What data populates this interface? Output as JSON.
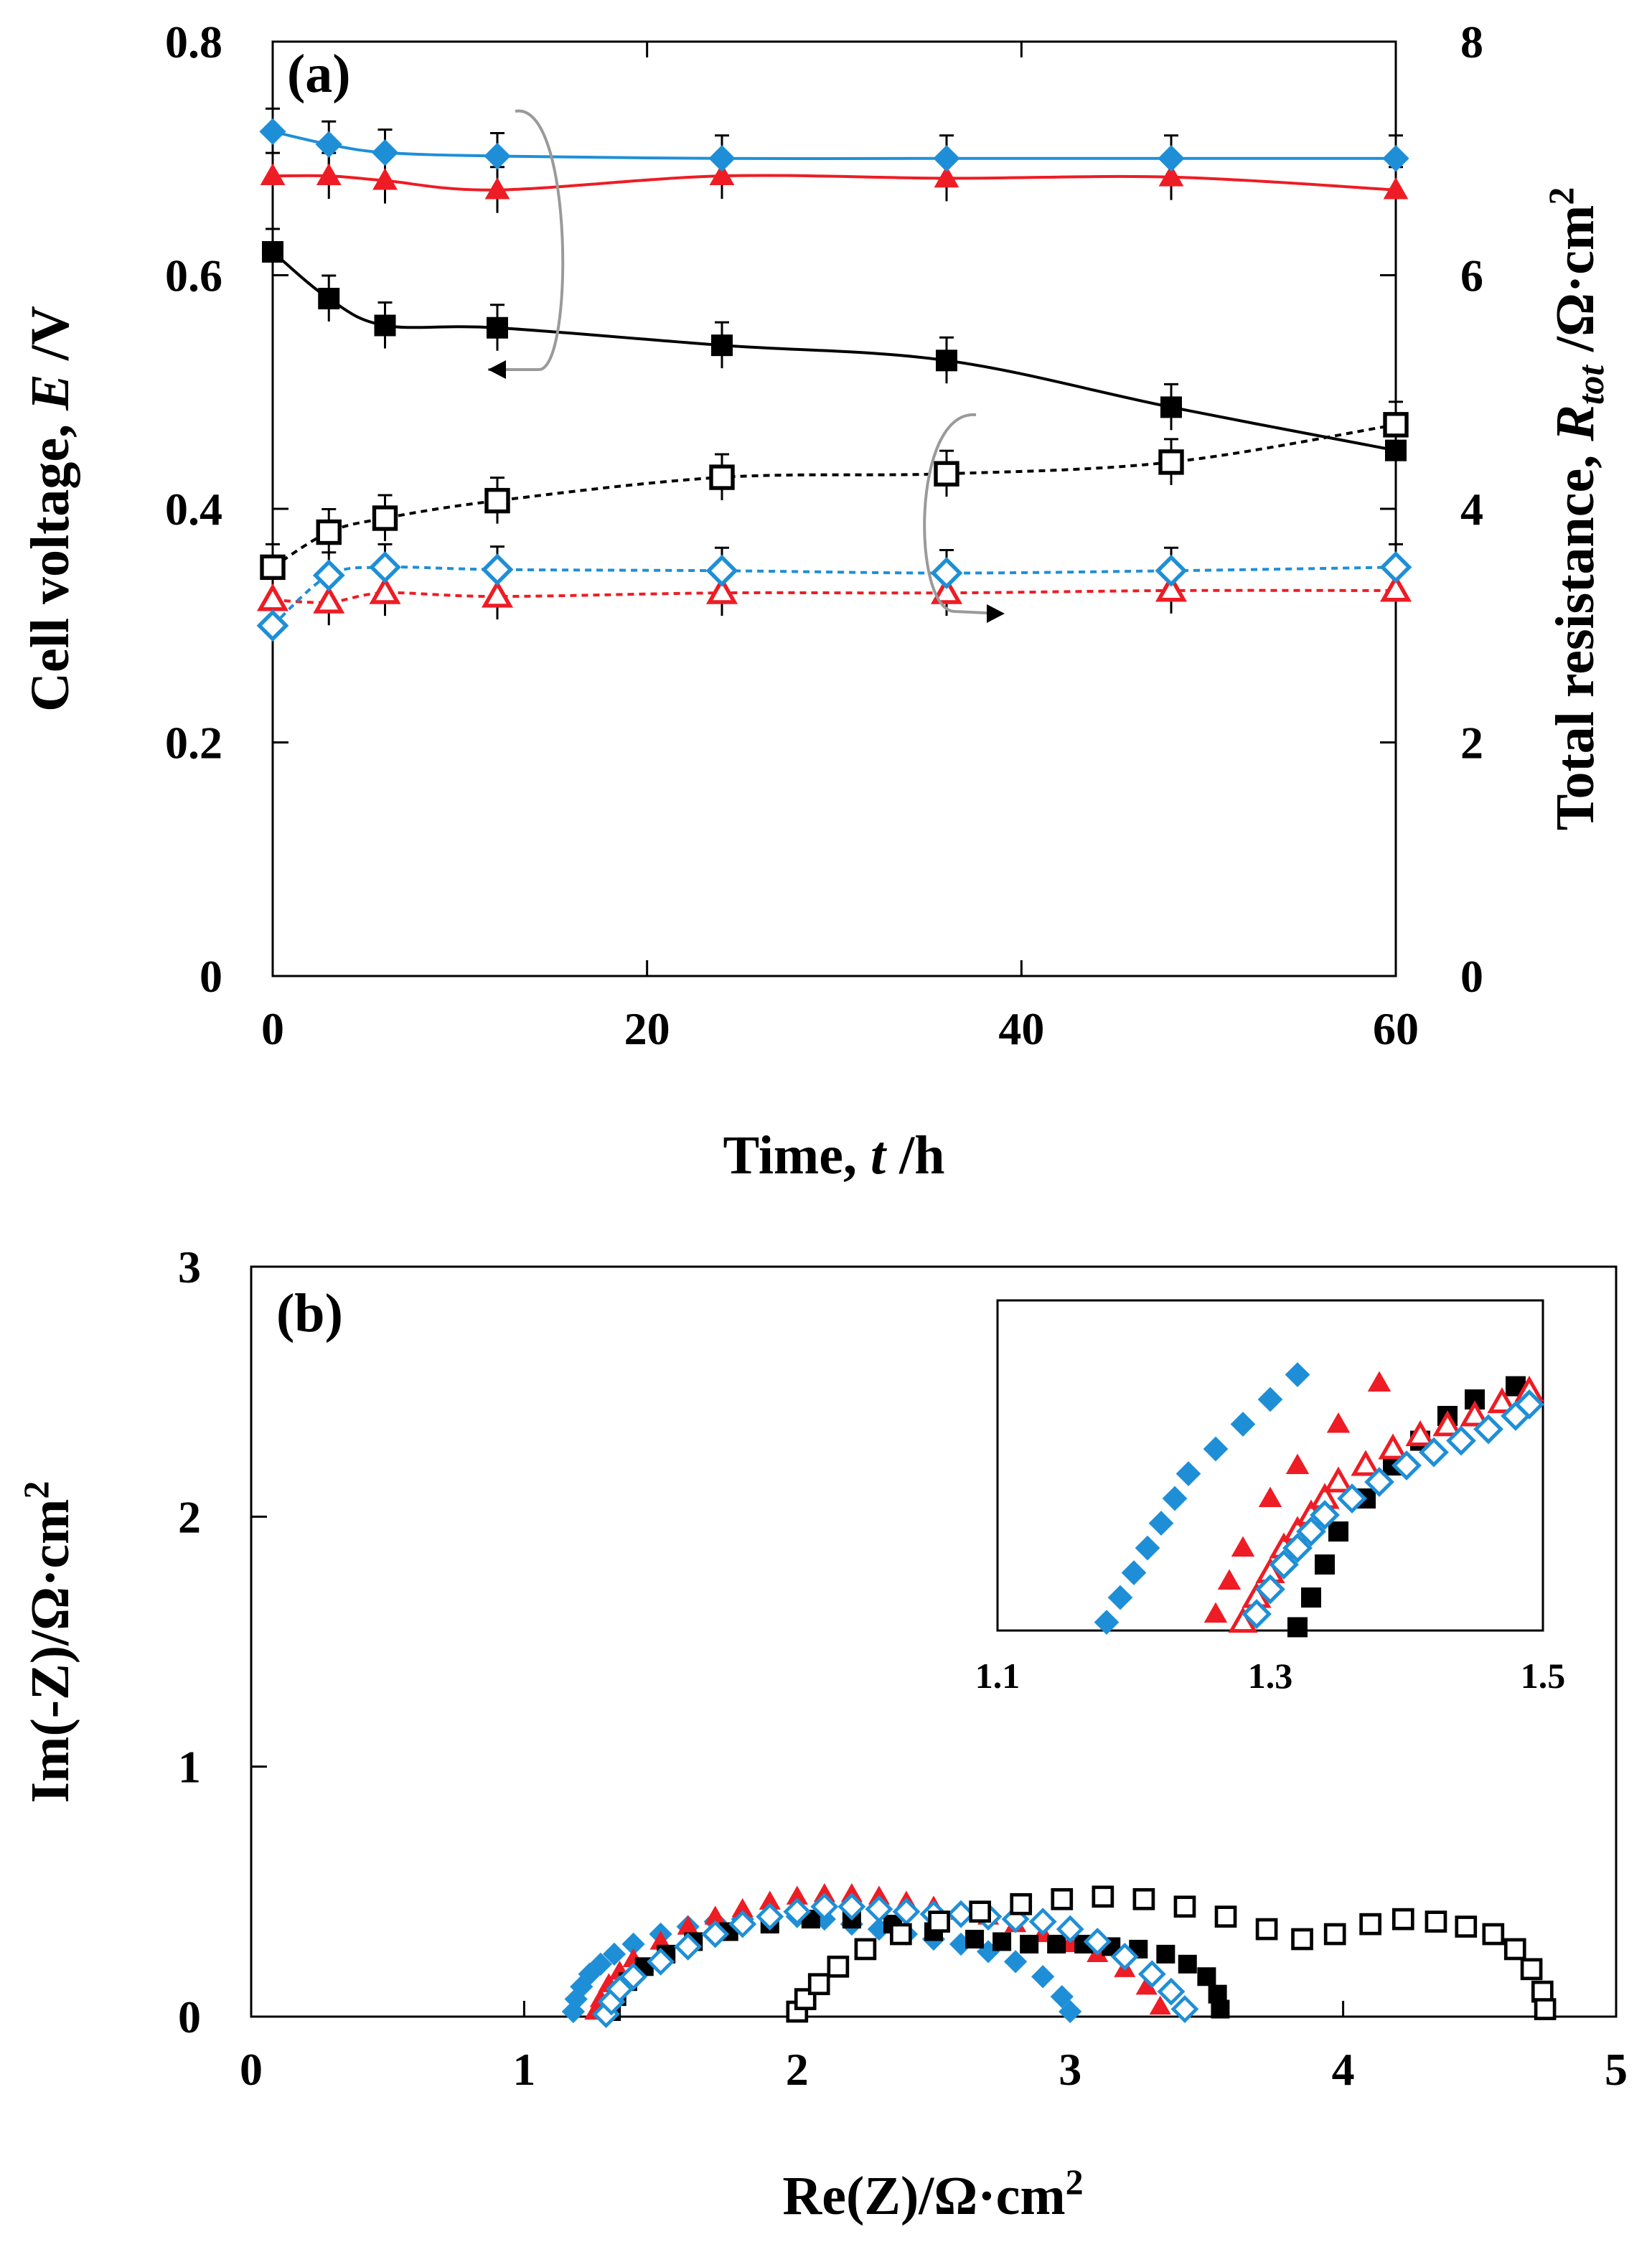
{
  "colors": {
    "black": "#000000",
    "red": "#ee1c24",
    "blue": "#1e8fd7",
    "grey_arrow": "#9a9a9a"
  },
  "panel_a": {
    "label": "(a)",
    "xlabel": "Time, t /h",
    "xlabel_main": "Time, ",
    "xlabel_var": "t",
    "xlabel_unit": " /h",
    "ylabel": "Cell voltage, E /V",
    "ylabel_main": "Cell voltage, ",
    "ylabel_var": "E",
    "ylabel_unit": " /V",
    "y2label": "Total resistance, R_tot /Ω·cm²",
    "y2label_main": "Total resistance, ",
    "y2label_var": "R",
    "y2label_sub": "tot",
    "y2label_unit": " /Ω·cm",
    "y2label_sup": "2",
    "xticks": [
      "0",
      "20",
      "40",
      "60"
    ],
    "yticks": [
      "0",
      "0.2",
      "0.4",
      "0.6",
      "0.8"
    ],
    "y2ticks": [
      "0",
      "2",
      "4",
      "6",
      "8"
    ]
  },
  "panel_b": {
    "label": "(b)",
    "xlabel": "Re(Z)/Ω·cm²",
    "xlabel_main": "Re(Z)/Ω·cm",
    "xlabel_sup": "2",
    "ylabel": "Im(-Z)/Ω·cm²",
    "ylabel_main": "Im(-Z)/Ω·cm",
    "ylabel_sup": "2",
    "xticks": [
      "0",
      "1",
      "2",
      "3",
      "4",
      "5"
    ],
    "yticks": [
      "0",
      "1",
      "2",
      "3"
    ],
    "inset_xticks": [
      "1.1",
      "1.3",
      "1.5"
    ]
  },
  "chart_data": [
    {
      "type": "scatter",
      "panel": "a",
      "title": "",
      "xlabel": "Time, t /h",
      "ylabel": "Cell voltage, E /V",
      "y2label": "Total resistance, R_tot /Ω·cm²",
      "xlim": [
        0,
        60
      ],
      "ylim": [
        0,
        0.8
      ],
      "y2lim": [
        0,
        8
      ],
      "grid": false,
      "x": [
        0,
        3,
        6,
        12,
        24,
        36,
        48,
        60
      ],
      "series": [
        {
          "axis": "left",
          "marker": "filled-square",
          "color": "#000000",
          "line": "solid",
          "values": [
            0.62,
            0.58,
            0.557,
            0.555,
            0.54,
            0.527,
            0.487,
            0.45
          ]
        },
        {
          "axis": "left",
          "marker": "filled-triangle",
          "color": "#ee1c24",
          "line": "solid",
          "values": [
            0.685,
            0.685,
            0.681,
            0.673,
            0.685,
            0.683,
            0.684,
            0.673
          ]
        },
        {
          "axis": "left",
          "marker": "filled-diamond",
          "color": "#1e8fd7",
          "line": "solid",
          "values": [
            0.723,
            0.712,
            0.705,
            0.702,
            0.7,
            0.7,
            0.7,
            0.7
          ]
        },
        {
          "axis": "right",
          "marker": "open-square",
          "color": "#000000",
          "line": "dotted",
          "values": [
            3.5,
            3.8,
            3.92,
            4.07,
            4.27,
            4.3,
            4.4,
            4.72
          ]
        },
        {
          "axis": "right",
          "marker": "open-triangle",
          "color": "#ee1c24",
          "line": "dotted",
          "values": [
            3.22,
            3.2,
            3.28,
            3.25,
            3.28,
            3.28,
            3.3,
            3.3
          ]
        },
        {
          "axis": "right",
          "marker": "open-diamond",
          "color": "#1e8fd7",
          "line": "dotted",
          "values": [
            3.0,
            3.43,
            3.5,
            3.48,
            3.47,
            3.45,
            3.47,
            3.5
          ]
        }
      ]
    },
    {
      "type": "scatter",
      "panel": "b",
      "title": "",
      "xlabel": "Re(Z)/Ω·cm²",
      "ylabel": "Im(-Z)/Ω·cm²",
      "xlim": [
        0,
        5
      ],
      "ylim": [
        0,
        3
      ],
      "grid": false,
      "series": [
        {
          "marker": "filled-diamond",
          "color": "#1e8fd7",
          "x": [
            1.18,
            1.19,
            1.21,
            1.24,
            1.28,
            1.33,
            1.4,
            1.5,
            1.6,
            1.7,
            1.8,
            1.9,
            2.0,
            2.1,
            2.2,
            2.3,
            2.4,
            2.5,
            2.6,
            2.7,
            2.8,
            2.9,
            2.97,
            3.0
          ],
          "y": [
            0.02,
            0.07,
            0.12,
            0.17,
            0.21,
            0.25,
            0.29,
            0.33,
            0.36,
            0.38,
            0.39,
            0.4,
            0.4,
            0.39,
            0.37,
            0.35,
            0.33,
            0.31,
            0.29,
            0.26,
            0.22,
            0.16,
            0.08,
            0.02
          ]
        },
        {
          "marker": "filled-triangle",
          "color": "#ee1c24",
          "x": [
            1.26,
            1.28,
            1.31,
            1.35,
            1.4,
            1.5,
            1.6,
            1.7,
            1.8,
            1.9,
            2.0,
            2.1,
            2.2,
            2.3,
            2.4,
            2.5,
            2.6,
            2.7,
            2.8,
            2.9,
            3.0,
            3.1,
            3.2,
            3.28,
            3.33
          ],
          "y": [
            0.02,
            0.07,
            0.13,
            0.18,
            0.23,
            0.3,
            0.36,
            0.4,
            0.43,
            0.46,
            0.48,
            0.49,
            0.49,
            0.48,
            0.46,
            0.44,
            0.42,
            0.4,
            0.37,
            0.33,
            0.29,
            0.25,
            0.19,
            0.12,
            0.04
          ]
        },
        {
          "marker": "filled-square",
          "color": "#000000",
          "x": [
            1.32,
            1.34,
            1.38,
            1.44,
            1.52,
            1.62,
            1.75,
            1.9,
            2.05,
            2.2,
            2.35,
            2.5,
            2.65,
            2.75,
            2.85,
            2.95,
            3.05,
            3.15,
            3.25,
            3.35,
            3.43,
            3.5,
            3.54,
            3.55
          ],
          "y": [
            0.02,
            0.08,
            0.14,
            0.2,
            0.25,
            0.3,
            0.34,
            0.37,
            0.39,
            0.39,
            0.37,
            0.34,
            0.31,
            0.3,
            0.29,
            0.29,
            0.29,
            0.28,
            0.27,
            0.25,
            0.21,
            0.16,
            0.09,
            0.03
          ]
        },
        {
          "marker": "open-diamond",
          "color": "#1e8fd7",
          "x": [
            1.3,
            1.32,
            1.35,
            1.4,
            1.5,
            1.6,
            1.7,
            1.8,
            1.9,
            2.0,
            2.1,
            2.2,
            2.3,
            2.4,
            2.5,
            2.6,
            2.7,
            2.8,
            2.9,
            3.0,
            3.1,
            3.2,
            3.3,
            3.37,
            3.42
          ],
          "y": [
            0.01,
            0.06,
            0.11,
            0.16,
            0.22,
            0.28,
            0.33,
            0.37,
            0.4,
            0.42,
            0.44,
            0.44,
            0.43,
            0.42,
            0.41,
            0.41,
            0.4,
            0.39,
            0.38,
            0.35,
            0.3,
            0.24,
            0.17,
            0.1,
            0.03
          ]
        },
        {
          "marker": "open-square",
          "color": "#000000",
          "x": [
            2.0,
            2.03,
            2.08,
            2.15,
            2.25,
            2.38,
            2.52,
            2.67,
            2.82,
            2.97,
            3.12,
            3.27,
            3.42,
            3.57,
            3.72,
            3.85,
            3.97,
            4.1,
            4.22,
            4.34,
            4.45,
            4.55,
            4.63,
            4.69,
            4.73,
            4.74
          ],
          "y": [
            0.02,
            0.07,
            0.13,
            0.2,
            0.27,
            0.33,
            0.38,
            0.42,
            0.45,
            0.47,
            0.48,
            0.47,
            0.44,
            0.4,
            0.35,
            0.31,
            0.33,
            0.37,
            0.39,
            0.38,
            0.36,
            0.33,
            0.27,
            0.19,
            0.1,
            0.03
          ]
        }
      ],
      "inset": {
        "xlim": [
          1.1,
          1.5
        ],
        "ylim": [
          0,
          0.2
        ],
        "series": [
          {
            "marker": "filled-diamond",
            "color": "#1e8fd7",
            "x": [
              1.18,
              1.19,
              1.2,
              1.21,
              1.22,
              1.23,
              1.24,
              1.26,
              1.28,
              1.3,
              1.32
            ],
            "y": [
              0.005,
              0.02,
              0.035,
              0.05,
              0.065,
              0.08,
              0.095,
              0.11,
              0.125,
              0.14,
              0.155
            ]
          },
          {
            "marker": "filled-triangle",
            "color": "#ee1c24",
            "x": [
              1.26,
              1.27,
              1.28,
              1.3,
              1.32,
              1.35,
              1.38
            ],
            "y": [
              0.01,
              0.03,
              0.05,
              0.08,
              0.1,
              0.125,
              0.15
            ]
          },
          {
            "marker": "filled-square",
            "color": "#000000",
            "x": [
              1.32,
              1.33,
              1.34,
              1.35,
              1.37,
              1.39,
              1.41,
              1.43,
              1.45,
              1.48
            ],
            "y": [
              0.002,
              0.02,
              0.04,
              0.06,
              0.08,
              0.1,
              0.115,
              0.13,
              0.14,
              0.148
            ]
          },
          {
            "marker": "open-triangle",
            "color": "#ee1c24",
            "x": [
              1.28,
              1.29,
              1.3,
              1.31,
              1.32,
              1.33,
              1.34,
              1.35,
              1.37,
              1.39,
              1.41,
              1.43,
              1.45,
              1.47,
              1.49
            ],
            "y": [
              0.005,
              0.02,
              0.035,
              0.05,
              0.06,
              0.07,
              0.08,
              0.09,
              0.1,
              0.11,
              0.118,
              0.124,
              0.13,
              0.138,
              0.145
            ]
          },
          {
            "marker": "open-diamond",
            "color": "#1e8fd7",
            "x": [
              1.29,
              1.3,
              1.31,
              1.32,
              1.33,
              1.34,
              1.36,
              1.38,
              1.4,
              1.42,
              1.44,
              1.46,
              1.48,
              1.49
            ],
            "y": [
              0.01,
              0.025,
              0.04,
              0.05,
              0.06,
              0.07,
              0.08,
              0.09,
              0.1,
              0.108,
              0.115,
              0.122,
              0.13,
              0.137
            ]
          }
        ]
      }
    }
  ]
}
